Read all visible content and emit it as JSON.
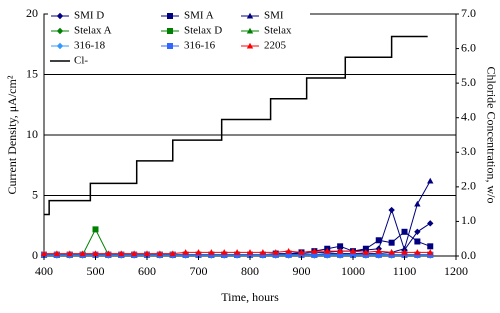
{
  "chart_data": {
    "type": "scatter",
    "xlabel": "Time, hours",
    "ylabel": "Current Density, μA/cm²",
    "y2label": "Chloride Concentration, w/o",
    "xlim": [
      400,
      1200
    ],
    "xticks": [
      400,
      500,
      600,
      700,
      800,
      900,
      1000,
      1100,
      1200
    ],
    "ylim": [
      0,
      20
    ],
    "yticks": [
      0,
      5,
      10,
      15,
      20
    ],
    "y2lim": [
      0,
      7
    ],
    "y2ticks": [
      {
        "value": 0,
        "label": "0.0"
      },
      {
        "value": 1,
        "label": "1.0"
      },
      {
        "value": 2,
        "label": "2.0"
      },
      {
        "value": 3,
        "label": "3.0"
      },
      {
        "value": 4,
        "label": "4.0"
      },
      {
        "value": 5,
        "label": "5.0"
      },
      {
        "value": 6,
        "label": "6.0"
      },
      {
        "value": 7,
        "label": "7.0"
      }
    ],
    "grid": true,
    "x": [
      400,
      425,
      450,
      475,
      500,
      525,
      550,
      575,
      600,
      625,
      650,
      675,
      700,
      725,
      750,
      775,
      800,
      825,
      850,
      875,
      900,
      925,
      950,
      975,
      1000,
      1025,
      1050,
      1075,
      1100,
      1125,
      1150
    ],
    "series": [
      {
        "name": "SMI D",
        "color": "#000080",
        "marker": "diamond",
        "values": [
          0.1,
          0.1,
          0.1,
          0.1,
          0.1,
          0.1,
          0.1,
          0.1,
          0.1,
          0.1,
          0.1,
          0.1,
          0.1,
          0.1,
          0.1,
          0.1,
          0.1,
          0.1,
          0.1,
          0.2,
          0.2,
          0.3,
          0.3,
          0.4,
          0.4,
          0.5,
          0.6,
          3.8,
          0.5,
          2.0,
          2.7
        ]
      },
      {
        "name": "SMI A",
        "color": "#000080",
        "marker": "square",
        "values": [
          0.1,
          0.1,
          0.1,
          0.1,
          0.1,
          0.1,
          0.1,
          0.1,
          0.1,
          0.1,
          0.1,
          0.1,
          0.1,
          0.1,
          0.1,
          0.1,
          0.1,
          0.1,
          0.2,
          0.2,
          0.3,
          0.4,
          0.6,
          0.8,
          0.4,
          0.6,
          1.3,
          1.1,
          2.0,
          1.2,
          0.8
        ]
      },
      {
        "name": "SMI",
        "color": "#000080",
        "marker": "triangle",
        "values": [
          0.1,
          0.1,
          0.1,
          0.1,
          0.1,
          0.1,
          0.1,
          0.1,
          0.1,
          0.1,
          0.1,
          0.1,
          0.1,
          0.1,
          0.1,
          0.1,
          0.1,
          0.1,
          0.1,
          0.1,
          0.1,
          0.1,
          0.2,
          0.2,
          0.2,
          0.2,
          0.2,
          0.3,
          0.6,
          4.3,
          6.2
        ]
      },
      {
        "name": "Stelax A",
        "color": "#008000",
        "marker": "diamond",
        "values": [
          0.05,
          0.05,
          0.05,
          0.05,
          0.05,
          0.05,
          0.05,
          0.05,
          0.05,
          0.05,
          0.05,
          0.05,
          0.05,
          0.05,
          0.05,
          0.05,
          0.05,
          0.05,
          0.05,
          0.05,
          0.05,
          0.05,
          0.05,
          0.05,
          0.05,
          0.05,
          0.05,
          0.05,
          0.05,
          0.05,
          0.05
        ]
      },
      {
        "name": "Stelax D",
        "color": "#008000",
        "marker": "square",
        "values": [
          0.1,
          0.1,
          0.1,
          0.1,
          2.2,
          0.1,
          0.1,
          0.1,
          0.1,
          0.1,
          0.1,
          0.1,
          0.1,
          0.1,
          0.1,
          0.1,
          0.1,
          0.1,
          0.1,
          0.1,
          0.1,
          0.1,
          0.1,
          0.1,
          0.1,
          0.1,
          0.1,
          0.1,
          0.1,
          0.1,
          0.1
        ]
      },
      {
        "name": "Stelax",
        "color": "#008000",
        "marker": "triangle",
        "values": [
          0.1,
          0.1,
          0.1,
          0.1,
          0.1,
          0.1,
          0.1,
          0.1,
          0.1,
          0.1,
          0.1,
          0.1,
          0.1,
          0.1,
          0.1,
          0.1,
          0.1,
          0.1,
          0.1,
          0.1,
          0.1,
          0.1,
          0.1,
          0.1,
          0.1,
          0.1,
          0.1,
          0.1,
          0.1,
          0.1,
          0.1
        ]
      },
      {
        "name": "316-18",
        "color": "#3399ff",
        "marker": "diamond",
        "values": [
          0.05,
          0.05,
          0.05,
          0.05,
          0.05,
          0.05,
          0.05,
          0.05,
          0.05,
          0.05,
          0.05,
          0.05,
          0.05,
          0.05,
          0.05,
          0.05,
          0.05,
          0.05,
          0.05,
          0.05,
          0.05,
          0.05,
          0.05,
          0.05,
          0.05,
          0.05,
          0.05,
          0.05,
          0.05,
          0.05,
          0.05
        ]
      },
      {
        "name": "316-16",
        "color": "#3366ff",
        "marker": "square",
        "values": [
          0.1,
          0.1,
          0.1,
          0.1,
          0.1,
          0.1,
          0.1,
          0.1,
          0.1,
          0.1,
          0.1,
          0.1,
          0.1,
          0.1,
          0.1,
          0.1,
          0.1,
          0.1,
          0.1,
          0.1,
          0.1,
          0.1,
          0.1,
          0.1,
          0.1,
          0.1,
          0.1,
          0.1,
          0.1,
          0.1,
          0.1
        ]
      },
      {
        "name": "2205",
        "color": "#ff0000",
        "marker": "triangle",
        "values": [
          0.2,
          0.2,
          0.2,
          0.2,
          0.2,
          0.2,
          0.2,
          0.2,
          0.2,
          0.2,
          0.2,
          0.3,
          0.3,
          0.3,
          0.3,
          0.3,
          0.3,
          0.3,
          0.3,
          0.4,
          0.3,
          0.4,
          0.4,
          0.4,
          0.4,
          0.3,
          0.4,
          0.3,
          0.3,
          0.3,
          0.3
        ]
      },
      {
        "name": "Cl-",
        "color": "#000000",
        "marker": "step",
        "axis": "y2",
        "x": [
          400,
          410,
          490,
          580,
          650,
          745,
          840,
          910,
          985,
          1075,
          1145
        ],
        "values": [
          1.2,
          1.6,
          2.1,
          2.75,
          3.35,
          3.95,
          4.55,
          5.15,
          5.75,
          6.35,
          6.35
        ]
      }
    ]
  }
}
